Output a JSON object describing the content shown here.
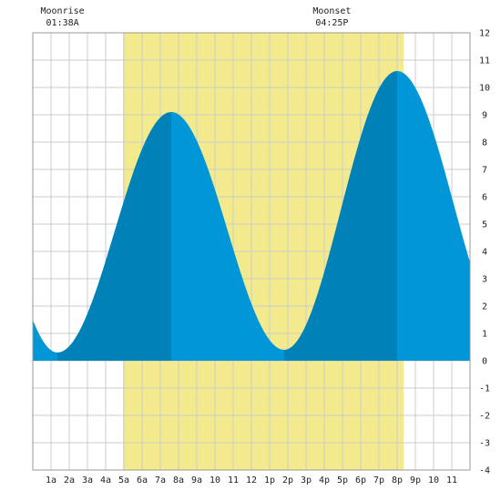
{
  "chart_data": {
    "type": "area",
    "x_unit": "hour of day",
    "x_range": [
      0,
      24
    ],
    "y_range": [
      -4,
      12
    ],
    "grid": true,
    "x_ticks": [
      {
        "hour": 1,
        "label": "1a"
      },
      {
        "hour": 2,
        "label": "2a"
      },
      {
        "hour": 3,
        "label": "3a"
      },
      {
        "hour": 4,
        "label": "4a"
      },
      {
        "hour": 5,
        "label": "5a"
      },
      {
        "hour": 6,
        "label": "6a"
      },
      {
        "hour": 7,
        "label": "7a"
      },
      {
        "hour": 8,
        "label": "8a"
      },
      {
        "hour": 9,
        "label": "9a"
      },
      {
        "hour": 10,
        "label": "10"
      },
      {
        "hour": 11,
        "label": "11"
      },
      {
        "hour": 12,
        "label": "12"
      },
      {
        "hour": 13,
        "label": "1p"
      },
      {
        "hour": 14,
        "label": "2p"
      },
      {
        "hour": 15,
        "label": "3p"
      },
      {
        "hour": 16,
        "label": "4p"
      },
      {
        "hour": 17,
        "label": "5p"
      },
      {
        "hour": 18,
        "label": "6p"
      },
      {
        "hour": 19,
        "label": "7p"
      },
      {
        "hour": 20,
        "label": "8p"
      },
      {
        "hour": 21,
        "label": "9p"
      },
      {
        "hour": 22,
        "label": "10"
      },
      {
        "hour": 23,
        "label": "11"
      }
    ],
    "y_ticks": [
      -4,
      -3,
      -2,
      -1,
      0,
      1,
      2,
      3,
      4,
      5,
      6,
      7,
      8,
      9,
      10,
      11,
      12
    ],
    "daylight": {
      "start_hour": 4.95,
      "end_hour": 20.35,
      "color": "#f2ea8c"
    },
    "moon_events": [
      {
        "label": "Moonrise",
        "time": "01:38A",
        "hour": 1.63
      },
      {
        "label": "Moonset",
        "time": "04:25P",
        "hour": 16.42
      }
    ],
    "tide_extremes": [
      {
        "hour": 1.35,
        "height": 0.3,
        "kind": "low"
      },
      {
        "hour": 7.6,
        "height": 9.1,
        "kind": "high"
      },
      {
        "hour": 13.8,
        "height": 0.4,
        "kind": "low"
      },
      {
        "hour": 20.0,
        "height": 10.6,
        "kind": "high"
      }
    ],
    "tide_ends": [
      {
        "hour": 0,
        "height": 1.5
      },
      {
        "hour": 24,
        "height": 3.6
      }
    ],
    "colors": {
      "rising": "#0081b8",
      "falling": "#0096d8",
      "grid": "#cccccc",
      "border": "#999999"
    }
  }
}
